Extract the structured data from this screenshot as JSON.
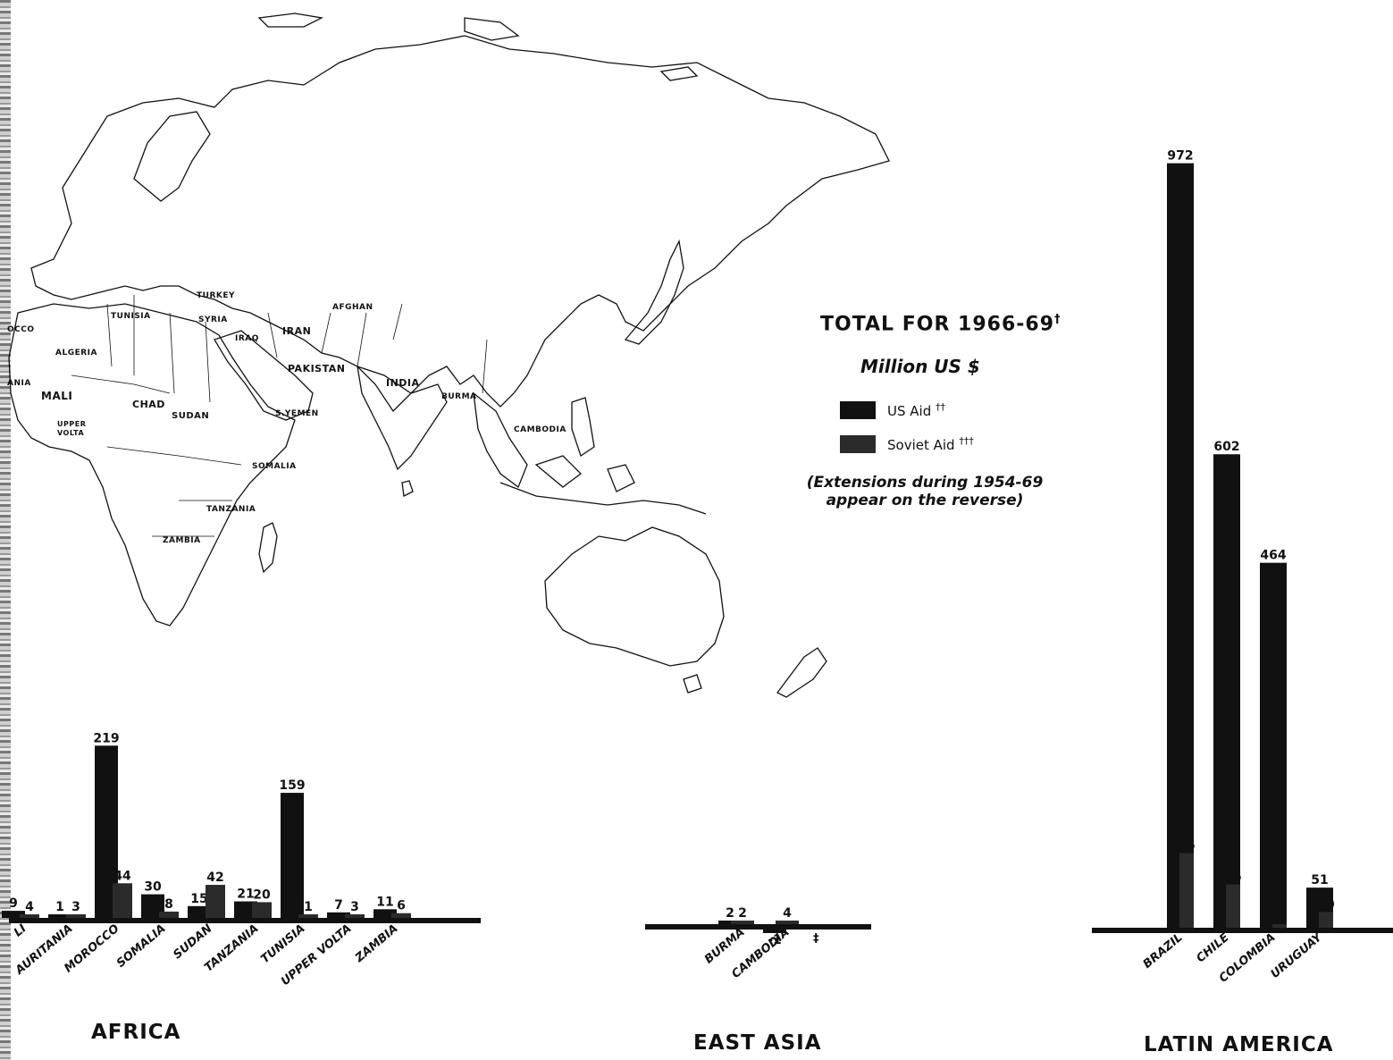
{
  "legend": {
    "title": "TOTAL FOR 1966-69",
    "title_mark": "†",
    "unit": "Million US $",
    "us_label": "US Aid",
    "us_mark": "††",
    "soviet_label": "Soviet Aid",
    "soviet_mark": "†††",
    "note_line1": "(Extensions during 1954-69",
    "note_line2": "appear on the reverse)",
    "us_color": "#111111",
    "soviet_color": "#2b2b2b"
  },
  "map_labels": {
    "turkey": "TURKEY",
    "tunisia": "TUNISIA",
    "syria": "SYRIA",
    "morocco_partial": "OCCO",
    "algeria": "ALGERIA",
    "iraq": "IRAQ",
    "iran": "IRAN",
    "afghan": "AFGHAN",
    "pakistan": "PAKISTAN",
    "india": "INDIA",
    "burma": "BURMA",
    "cambodia": "CAMBODIA",
    "mauritania_partial": "ANIA",
    "mali": "MALI",
    "chad": "CHAD",
    "sudan": "SUDAN",
    "s_yemen": "S.YEMEN",
    "upper_volta_1": "UPPER",
    "upper_volta_2": "VOLTA",
    "somalia": "SOMALIA",
    "tanzania": "TANZANIA",
    "zambia": "ZAMBIA"
  },
  "chart_data": [
    {
      "type": "bar",
      "region": "AFRICA",
      "title": "AFRICA",
      "categories": [
        "MALI",
        "MAURITANIA",
        "MOROCCO",
        "SOMALIA",
        "SUDAN",
        "TANZANIA",
        "TUNISIA",
        "UPPER VOLTA",
        "ZAMBIA"
      ],
      "category_labels": [
        "LI",
        "AURITANIA",
        "MOROCCO",
        "SOMALIA",
        "SUDAN",
        "TANZANIA",
        "TUNISIA",
        "UPPER VOLTA",
        "ZAMBIA"
      ],
      "series": [
        {
          "name": "US Aid",
          "values": [
            9,
            1,
            219,
            30,
            15,
            21,
            159,
            7,
            11
          ],
          "labels": [
            "9",
            "1",
            "219",
            "30",
            "15",
            "21",
            "159",
            "7",
            "11"
          ]
        },
        {
          "name": "Soviet Aid",
          "values": [
            4,
            3,
            44,
            8,
            42,
            20,
            1,
            3,
            6
          ],
          "labels": [
            "4",
            "3",
            "44",
            "8",
            "42",
            "20",
            "1",
            "3",
            "6"
          ]
        }
      ],
      "ylim": [
        0,
        1000
      ]
    },
    {
      "type": "bar",
      "region": "EAST ASIA",
      "title": "EAST ASIA",
      "categories": [
        "BURMA",
        "CAMBODIA"
      ],
      "category_labels": [
        "BURMA",
        "CAMBODIA"
      ],
      "series": [
        {
          "name": "US Aid",
          "values": [
            2,
            -1
          ],
          "labels": [
            "2",
            "-1"
          ]
        },
        {
          "name": "Soviet Aid",
          "values": [
            2,
            4
          ],
          "labels": [
            "2",
            "4"
          ]
        }
      ],
      "footnote_mark": "‡",
      "ylim": [
        0,
        1000
      ]
    },
    {
      "type": "bar",
      "region": "LATIN AMERICA",
      "title": "LATIN AMERICA",
      "categories": [
        "BRAZIL",
        "CHILE",
        "COLOMBIA",
        "URUGUAY"
      ],
      "category_labels": [
        "BRAZIL",
        "CHILE",
        "COLOMBIA",
        "URUGUAY"
      ],
      "series": [
        {
          "name": "US Aid",
          "values": [
            972,
            602,
            464,
            51
          ],
          "labels": [
            "972",
            "602",
            "464",
            "51"
          ]
        },
        {
          "name": "Soviet Aid",
          "values": [
            95,
            55,
            2,
            20
          ],
          "labels": [
            "95",
            "55",
            "2",
            "20"
          ]
        }
      ],
      "ylim": [
        0,
        1000
      ]
    }
  ]
}
